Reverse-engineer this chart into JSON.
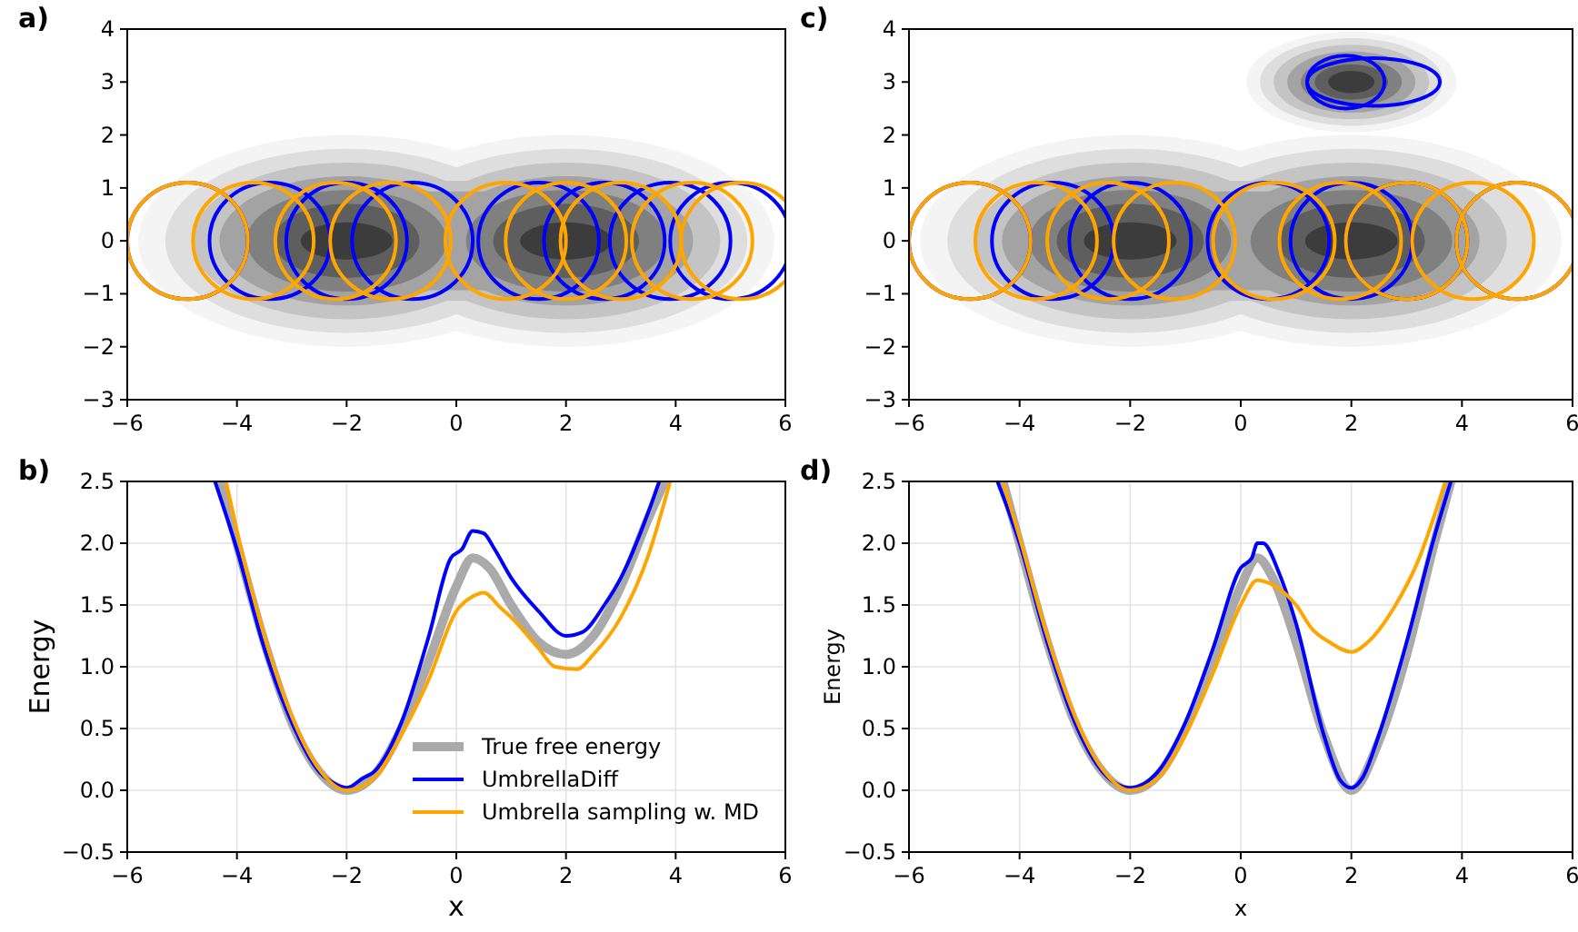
{
  "chart_data": [
    {
      "type": "line",
      "title": "a)",
      "xlim": [
        -6,
        6
      ],
      "xticks": [
        -6,
        -4,
        -2,
        0,
        2,
        4,
        6
      ],
      "ylim": [
        -3,
        4
      ],
      "yticks": [
        -3,
        -2,
        -1,
        0,
        1,
        2,
        3,
        4
      ]
    },
    {
      "type": "line",
      "title": "c)",
      "xlim": [
        -6,
        6
      ],
      "xticks": [
        -6,
        -4,
        -2,
        0,
        2,
        4,
        6
      ],
      "ylim": [
        -3,
        4
      ],
      "yticks": [
        -3,
        -2,
        -1,
        0,
        1,
        2,
        3,
        4
      ]
    },
    {
      "type": "line",
      "title": "b)",
      "xlabel": "x",
      "ylabel": "Energy",
      "xlim": [
        -6,
        6
      ],
      "xticks": [
        -6,
        -4,
        -2,
        0,
        2,
        4,
        6
      ],
      "ylim": [
        -0.5,
        2.5
      ],
      "yticks": [
        -0.5,
        {
          "value": 0,
          "label": "0.0"
        },
        0.5,
        {
          "value": 1,
          "label": "1.0"
        },
        1.5,
        {
          "value": 2,
          "label": "2.0"
        },
        2.5
      ],
      "grid": true,
      "legend": "bottom right",
      "series": [
        {
          "name": "True free energy",
          "color": "#aaaaaa",
          "x": [
            -4.3,
            -4,
            -3.5,
            -3,
            -2.5,
            -2,
            -1.5,
            -1,
            -0.5,
            0,
            0.3,
            0.6,
            1,
            1.5,
            2,
            2.5,
            3,
            3.5,
            3.8
          ],
          "values": [
            2.5,
            2.0,
            1.2,
            0.55,
            0.15,
            0.0,
            0.12,
            0.5,
            1.05,
            1.65,
            1.88,
            1.8,
            1.5,
            1.2,
            1.1,
            1.25,
            1.65,
            2.2,
            2.5
          ]
        },
        {
          "name": "UmbrellaDiff",
          "color": "#0000ff",
          "x": [
            -4.4,
            -4,
            -3.5,
            -3,
            -2.5,
            -2.2,
            -2,
            -1.7,
            -1.5,
            -1,
            -0.5,
            -0.1,
            0.1,
            0.3,
            0.5,
            0.7,
            1,
            1.5,
            2,
            2.3,
            2.7,
            3,
            3.5,
            3.7
          ],
          "values": [
            2.5,
            1.95,
            1.15,
            0.55,
            0.15,
            0.05,
            0.02,
            0.1,
            0.15,
            0.55,
            1.25,
            1.88,
            1.95,
            2.1,
            2.08,
            1.95,
            1.72,
            1.45,
            1.25,
            1.28,
            1.5,
            1.72,
            2.25,
            2.5
          ]
        },
        {
          "name": "Umbrella sampling w. MD",
          "color": "#ffa500",
          "x": [
            -4.2,
            -4,
            -3.5,
            -3,
            -2.5,
            -2,
            -1.5,
            -1,
            -0.5,
            0,
            0.3,
            0.5,
            0.8,
            1,
            1.5,
            1.8,
            2.2,
            2.5,
            3,
            3.5,
            3.9
          ],
          "values": [
            2.5,
            2.1,
            1.25,
            0.6,
            0.17,
            0.0,
            0.1,
            0.45,
            0.9,
            1.45,
            1.57,
            1.6,
            1.48,
            1.4,
            1.15,
            1.0,
            0.98,
            1.1,
            1.4,
            1.9,
            2.5
          ]
        }
      ]
    },
    {
      "type": "line",
      "title": "d)",
      "xlabel": "x",
      "ylabel": "Energy",
      "xlim": [
        -6,
        6
      ],
      "xticks": [
        -6,
        -4,
        -2,
        0,
        2,
        4,
        6
      ],
      "ylim": [
        -0.5,
        2.5
      ],
      "yticks": [
        -0.5,
        {
          "value": 0,
          "label": "0.0"
        },
        0.5,
        {
          "value": 1,
          "label": "1.0"
        },
        1.5,
        {
          "value": 2,
          "label": "2.0"
        },
        2.5
      ],
      "grid": true,
      "legend": false,
      "series": [
        {
          "color": "#aaaaaa",
          "x": [
            -4.3,
            -4,
            -3.5,
            -3,
            -2.5,
            -2,
            -1.5,
            -1,
            -0.5,
            0,
            0.3,
            0.6,
            1,
            1.5,
            2,
            2.5,
            3,
            3.5,
            3.8
          ],
          "values": [
            2.5,
            2.0,
            1.2,
            0.55,
            0.15,
            0,
            0.12,
            0.5,
            1.05,
            1.65,
            1.88,
            1.7,
            1.2,
            0.45,
            0,
            0.4,
            1.1,
            2.0,
            2.5
          ]
        },
        {
          "color": "#0000ff",
          "x": [
            -4.4,
            -4,
            -3.5,
            -3,
            -2.5,
            -2,
            -1.5,
            -1,
            -0.5,
            0,
            0.2,
            0.3,
            0.4,
            0.7,
            1,
            1.5,
            1.8,
            2,
            2.2,
            2.5,
            3,
            3.5,
            3.8
          ],
          "values": [
            2.5,
            2.0,
            1.2,
            0.55,
            0.15,
            0.02,
            0.15,
            0.55,
            1.15,
            1.8,
            1.88,
            2.0,
            2.0,
            1.75,
            1.35,
            0.45,
            0.08,
            0.02,
            0.1,
            0.45,
            1.2,
            2.05,
            2.5
          ]
        },
        {
          "color": "#ffa500",
          "x": [
            -4.3,
            -4,
            -3.5,
            -3,
            -2.5,
            -2,
            -1.5,
            -1,
            -0.5,
            0,
            0.3,
            0.5,
            1,
            1.3,
            1.6,
            2,
            2.3,
            2.8,
            3.2,
            3.7
          ],
          "values": [
            2.5,
            2.05,
            1.25,
            0.6,
            0.17,
            0.0,
            0.1,
            0.45,
            0.95,
            1.5,
            1.7,
            1.68,
            1.5,
            1.3,
            1.2,
            1.12,
            1.2,
            1.5,
            1.85,
            2.5
          ]
        }
      ]
    }
  ]
}
